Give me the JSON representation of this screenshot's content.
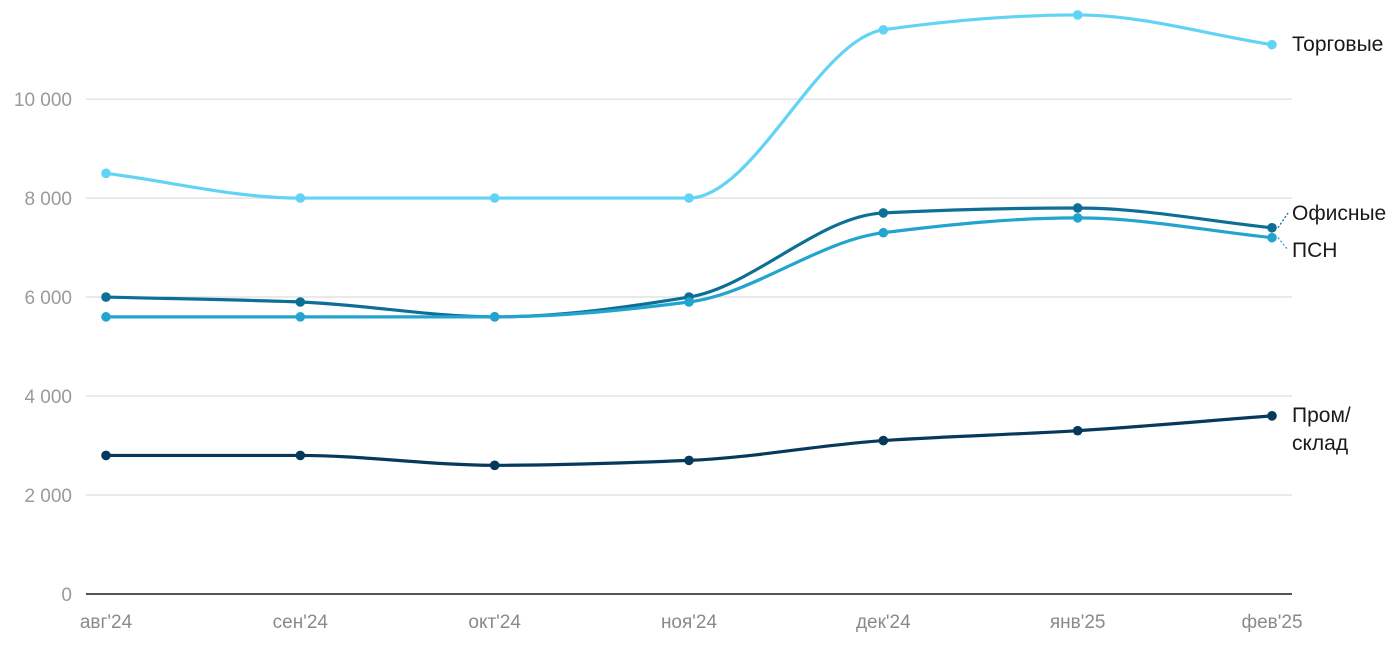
{
  "chart_data": {
    "type": "line",
    "title": "",
    "xlabel": "",
    "ylabel": "",
    "categories": [
      "авг'24",
      "сен'24",
      "окт'24",
      "ноя'24",
      "дек'24",
      "янв'25",
      "фев'25"
    ],
    "ylim": [
      0,
      11800
    ],
    "yticks": [
      0,
      2000,
      4000,
      6000,
      8000,
      10000
    ],
    "ytick_labels": [
      "0",
      "2 000",
      "4 000",
      "6 000",
      "8 000",
      "10 000"
    ],
    "grid": true,
    "legend": "labels at line ends (right)",
    "series": [
      {
        "name": "Торговые",
        "color": "#62d3f5",
        "values": [
          8500,
          8000,
          8000,
          8000,
          11400,
          11700,
          11100
        ]
      },
      {
        "name": "Офисные",
        "color": "#0e6f96",
        "values": [
          6000,
          5900,
          5600,
          6000,
          7700,
          7800,
          7400
        ]
      },
      {
        "name": "ПСН",
        "color": "#21a5cf",
        "values": [
          5600,
          5600,
          5600,
          5900,
          7300,
          7600,
          7200
        ]
      },
      {
        "name": "Пром/ склад",
        "label_lines": [
          "Пром/",
          "склад"
        ],
        "color": "#06395c",
        "values": [
          2800,
          2800,
          2600,
          2700,
          3100,
          3300,
          3600
        ]
      }
    ]
  }
}
